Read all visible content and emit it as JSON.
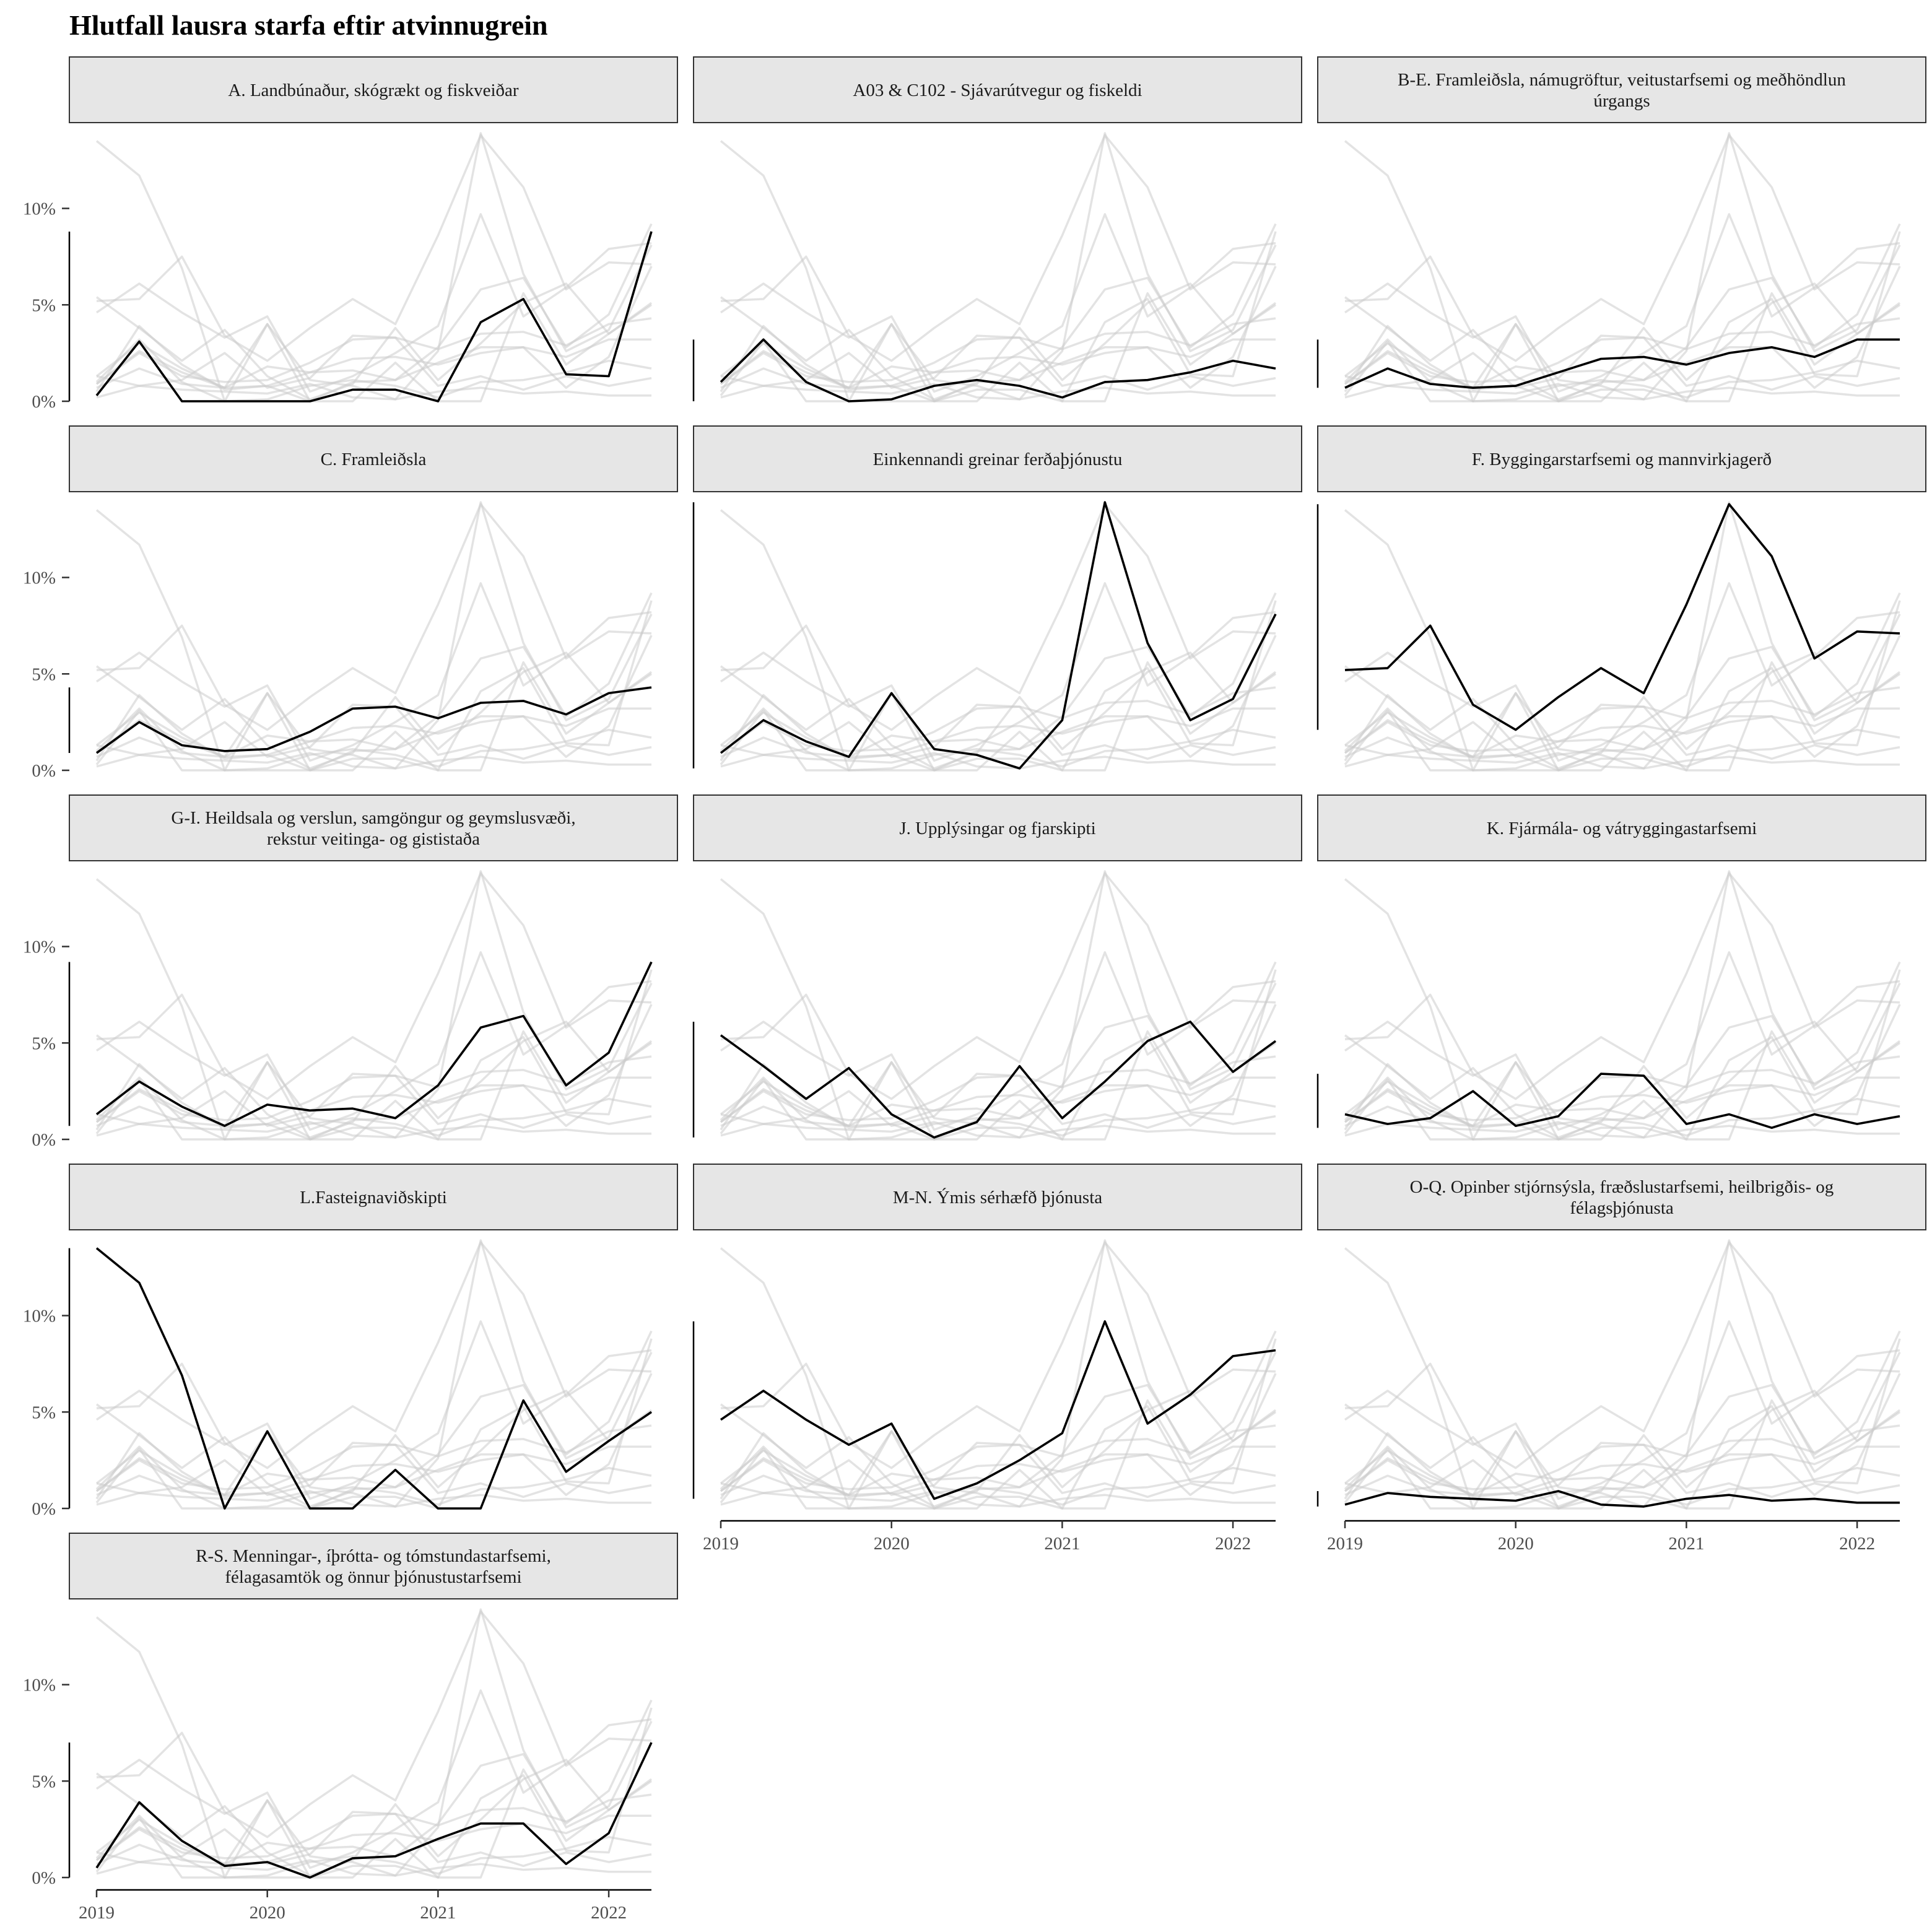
{
  "chart_data": {
    "type": "line",
    "title": "Hlutfall lausra starfa eftir atvinnugrein",
    "layout": "small-multiples",
    "x": [
      2019,
      2019.25,
      2019.5,
      2019.75,
      2020,
      2020.25,
      2020.5,
      2020.75,
      2021,
      2021.25,
      2021.5,
      2021.75,
      2022,
      2022.25
    ],
    "x_ticks": [
      2019,
      2020,
      2021,
      2022
    ],
    "y_ticks": [
      0,
      5,
      10
    ],
    "y_tick_labels": [
      "0%",
      "5%",
      "10%"
    ],
    "ylim": [
      0,
      14
    ],
    "highlight_color": "#000000",
    "background_color": "#cccccc",
    "strip_fill": "#e6e6e6",
    "series": [
      {
        "name": "A. Landbúnaður, skógrækt og fiskveiðar",
        "values": [
          0.3,
          3.1,
          0.0,
          0.0,
          0.0,
          0.0,
          0.6,
          0.6,
          0.0,
          4.1,
          5.3,
          1.4,
          1.3,
          8.8
        ]
      },
      {
        "name": "A03 & C102 - Sjávarútvegur og fiskeldi",
        "values": [
          1.0,
          3.2,
          1.0,
          0.0,
          0.1,
          0.8,
          1.1,
          0.8,
          0.2,
          1.0,
          1.1,
          1.5,
          2.1,
          1.7
        ]
      },
      {
        "name": "B-E. Framleiðsla, námugröftur, veitustarfsemi og meðhöndlun úrgangs",
        "values": [
          0.7,
          1.7,
          0.9,
          0.7,
          0.8,
          1.5,
          2.2,
          2.3,
          1.9,
          2.5,
          2.8,
          2.3,
          3.2,
          3.2
        ]
      },
      {
        "name": "C. Framleiðsla",
        "values": [
          0.9,
          2.5,
          1.3,
          1.0,
          1.1,
          2.0,
          3.2,
          3.3,
          2.7,
          3.5,
          3.6,
          2.9,
          4.0,
          4.3
        ]
      },
      {
        "name": "Einkennandi greinar ferðaþjónustu",
        "values": [
          0.9,
          2.6,
          1.5,
          0.7,
          4.0,
          1.1,
          0.8,
          0.1,
          2.6,
          13.9,
          6.6,
          2.6,
          3.7,
          8.1
        ]
      },
      {
        "name": "F. Byggingarstarfsemi og mannvirkjagerð",
        "values": [
          5.2,
          5.3,
          7.5,
          3.4,
          2.1,
          3.8,
          5.3,
          4.0,
          8.6,
          13.8,
          11.1,
          5.8,
          7.2,
          7.1
        ]
      },
      {
        "name": "G-I. Heildsala og verslun, samgöngur og geymslusvæði, rekstur veitinga- og gististaða",
        "values": [
          1.3,
          3.0,
          1.7,
          0.7,
          1.8,
          1.5,
          1.6,
          1.1,
          2.8,
          5.8,
          6.4,
          2.8,
          4.5,
          9.2
        ]
      },
      {
        "name": "J. Upplýsingar og fjarskipti",
        "values": [
          5.4,
          3.8,
          2.1,
          3.7,
          1.3,
          0.1,
          0.9,
          3.8,
          1.1,
          3.0,
          5.1,
          6.1,
          3.5,
          5.1
        ]
      },
      {
        "name": "K. Fjármála- og vátryggingastarfsemi",
        "values": [
          1.3,
          0.8,
          1.1,
          2.5,
          0.7,
          1.2,
          3.4,
          3.3,
          0.8,
          1.3,
          0.6,
          1.3,
          0.8,
          1.2
        ]
      },
      {
        "name": "L.Fasteignaviðskipti",
        "values": [
          13.5,
          11.7,
          6.9,
          0.0,
          4.0,
          0.0,
          0.0,
          2.0,
          0.0,
          0.0,
          5.6,
          1.9,
          3.5,
          5.0
        ]
      },
      {
        "name": "M-N. Ýmis sérhæfð þjónusta",
        "values": [
          4.6,
          6.1,
          4.6,
          3.3,
          4.4,
          0.5,
          1.3,
          2.5,
          3.9,
          9.7,
          4.4,
          5.9,
          7.9,
          8.2
        ]
      },
      {
        "name": "O-Q. Opinber stjórnsýsla, fræðslustarfsemi, heilbrigðis- og félagsþjónusta",
        "values": [
          0.2,
          0.8,
          0.6,
          0.5,
          0.4,
          0.9,
          0.2,
          0.1,
          0.5,
          0.7,
          0.4,
          0.5,
          0.3,
          0.3
        ]
      },
      {
        "name": "R-S. Menningar-, íþrótta- og tómstundastarfsemi, félagasamtök og önnur þjónustustarfsemi",
        "values": [
          0.5,
          3.9,
          1.9,
          0.6,
          0.8,
          0.0,
          1.0,
          1.1,
          2.0,
          2.8,
          2.8,
          0.7,
          2.3,
          7.0
        ]
      }
    ],
    "panel_titles": [
      [
        "A. Landbúnaður, skógrækt og fiskveiðar"
      ],
      [
        "A03 & C102 - Sjávarútvegur og fiskeldi"
      ],
      [
        "B-E. Framleiðsla, námugröftur, veitustarfsemi og meðhöndlun",
        "úrgangs"
      ],
      [
        "C. Framleiðsla"
      ],
      [
        "Einkennandi greinar ferðaþjónustu"
      ],
      [
        "F. Byggingarstarfsemi og mannvirkjagerð"
      ],
      [
        "G-I. Heildsala og verslun, samgöngur og geymslusvæði,",
        "rekstur veitinga- og gististaða"
      ],
      [
        "J. Upplýsingar og fjarskipti"
      ],
      [
        "K. Fjármála- og vátryggingastarfsemi"
      ],
      [
        "L.Fasteignaviðskipti"
      ],
      [
        "M-N. Ýmis sérhæfð þjónusta"
      ],
      [
        "O-Q. Opinber stjórnsýsla, fræðslustarfsemi, heilbrigðis- og",
        "félagsþjónusta"
      ],
      [
        "R-S. Menningar-, íþrótta- og tómstundastarfsemi,",
        "félagasamtök og önnur þjónustustarfsemi"
      ]
    ]
  }
}
